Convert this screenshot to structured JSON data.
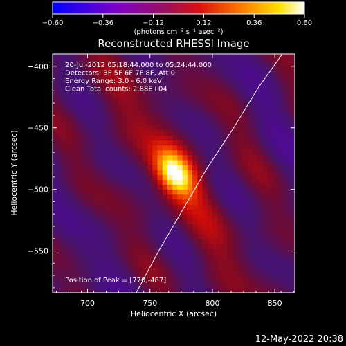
{
  "chart_data": {
    "type": "heatmap",
    "title": "Reconstructed RHESSI Image",
    "xlabel": "Heliocentric X (arcsec)",
    "ylabel": "Heliocentric Y (arcsec)",
    "xlim": [
      672,
      866
    ],
    "ylim": [
      -584,
      -390
    ],
    "x_ticks": [
      700,
      750,
      800,
      850
    ],
    "y_ticks": [
      -400,
      -450,
      -500,
      -550
    ],
    "x_tick_labels": [
      "700",
      "750",
      "800",
      "850"
    ],
    "y_tick_labels": [
      "−400",
      "−450",
      "−500",
      "−550"
    ],
    "colorbar": {
      "range": [
        -0.6,
        0.6
      ],
      "ticks": [
        -0.6,
        -0.36,
        -0.12,
        0.12,
        0.36,
        0.6
      ],
      "tick_labels": [
        "−0.60",
        "−0.36",
        "−0.12",
        "0.12",
        "0.36",
        "0.60"
      ],
      "units": "(photons cm⁻² s⁻¹ asec⁻²)"
    },
    "annotations": [
      "20-Jul-2012 05:18:44.000 to 05:24:44.000",
      "Detectors: 3F 5F 6F 7F 8F, Att 0",
      "Energy Range: 3.0 - 6.0 keV",
      "Clean    Total counts: 2.88E+04"
    ],
    "peak_label": "Position of Peak = [770,-487]",
    "peak": [
      770,
      -487
    ],
    "limb_curve": [
      [
        739,
        -584
      ],
      [
        757,
        -550
      ],
      [
        776,
        -517
      ],
      [
        795,
        -484
      ],
      [
        817,
        -450
      ],
      [
        837,
        -417
      ],
      [
        856,
        -390
      ]
    ]
  },
  "footer_timestamp": "12-May-2022 20:38"
}
